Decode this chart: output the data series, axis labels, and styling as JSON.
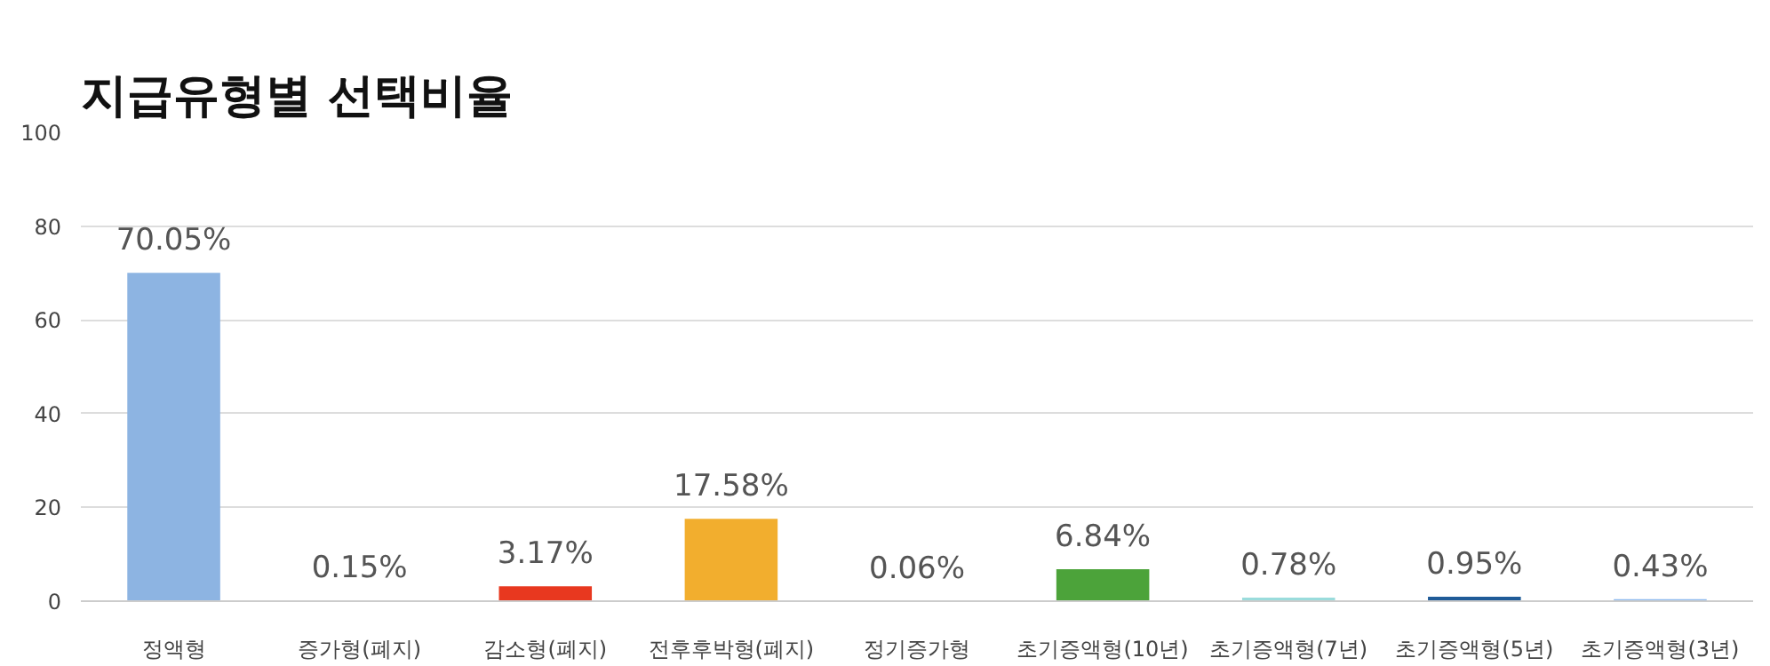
{
  "chart_data": {
    "type": "bar",
    "title": "지급유형별 선택비율",
    "categories": [
      "정액형",
      "증가형(폐지)",
      "감소형(폐지)",
      "전후후박형(폐지)",
      "정기증가형",
      "초기증액형(10년)",
      "초기증액형(7년)",
      "초기증액형(5년)",
      "초기증액형(3년)"
    ],
    "values": [
      70.05,
      0.15,
      3.17,
      17.58,
      0.06,
      6.84,
      0.78,
      0.95,
      0.43
    ],
    "value_labels": [
      "70.05%",
      "0.15%",
      "3.17%",
      "17.58%",
      "0.06%",
      "6.84%",
      "0.78%",
      "0.95%",
      "0.43%"
    ],
    "colors": [
      "#8db4e2",
      "#f0d8f0",
      "#e8381f",
      "#f2ae2e",
      "#f4f0d8",
      "#4ca33a",
      "#9adcdc",
      "#1f5b98",
      "#8cb8ee"
    ],
    "ylim": [
      0,
      100
    ],
    "yticks": [
      0,
      20,
      40,
      60,
      80,
      100
    ],
    "grid": "y"
  }
}
